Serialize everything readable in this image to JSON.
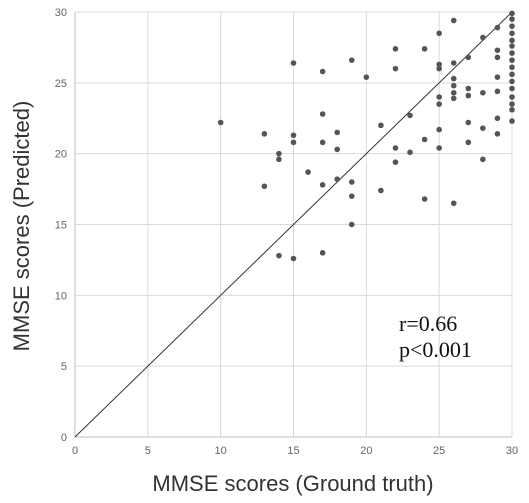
{
  "chart_data": {
    "type": "scatter",
    "xlabel": "MMSE scores (Ground truth)",
    "ylabel": "MMSE scores (Predicted)",
    "xlim": [
      0,
      30
    ],
    "ylim": [
      0,
      30
    ],
    "xticks": [
      0,
      5,
      10,
      15,
      20,
      25,
      30
    ],
    "yticks": [
      0,
      5,
      10,
      15,
      20,
      25,
      30
    ],
    "grid": true,
    "identity_line": true,
    "annotations": [
      "r=0.66",
      "p<0.001"
    ],
    "annotation_placement": "lower-right",
    "marker_color": "#555555",
    "points": [
      [
        10,
        22.2
      ],
      [
        13,
        21.4
      ],
      [
        13,
        17.7
      ],
      [
        14,
        20.0
      ],
      [
        14,
        19.6
      ],
      [
        14,
        12.8
      ],
      [
        15,
        26.4
      ],
      [
        15,
        21.3
      ],
      [
        15,
        20.8
      ],
      [
        15,
        12.6
      ],
      [
        16,
        18.7
      ],
      [
        17,
        25.8
      ],
      [
        17,
        22.8
      ],
      [
        17,
        20.8
      ],
      [
        17,
        17.8
      ],
      [
        17,
        13.0
      ],
      [
        18,
        21.5
      ],
      [
        18,
        20.3
      ],
      [
        18,
        18.2
      ],
      [
        19,
        26.6
      ],
      [
        19,
        18.0
      ],
      [
        19,
        17.0
      ],
      [
        19,
        15.0
      ],
      [
        20,
        25.4
      ],
      [
        21,
        22.0
      ],
      [
        21,
        17.4
      ],
      [
        22,
        27.4
      ],
      [
        22,
        26.0
      ],
      [
        22,
        20.4
      ],
      [
        22,
        19.4
      ],
      [
        23,
        22.7
      ],
      [
        23,
        20.1
      ],
      [
        24,
        27.4
      ],
      [
        24,
        21.0
      ],
      [
        24,
        16.8
      ],
      [
        25,
        28.5
      ],
      [
        25,
        26.3
      ],
      [
        25,
        26.0
      ],
      [
        25,
        24.0
      ],
      [
        25,
        23.5
      ],
      [
        25,
        21.7
      ],
      [
        25,
        20.4
      ],
      [
        26,
        29.4
      ],
      [
        26,
        26.4
      ],
      [
        26,
        25.3
      ],
      [
        26,
        24.8
      ],
      [
        26,
        24.3
      ],
      [
        26,
        23.9
      ],
      [
        26,
        16.5
      ],
      [
        27,
        26.8
      ],
      [
        27,
        24.6
      ],
      [
        27,
        24.1
      ],
      [
        27,
        22.2
      ],
      [
        27,
        20.8
      ],
      [
        28,
        28.2
      ],
      [
        28,
        24.3
      ],
      [
        28,
        21.8
      ],
      [
        28,
        19.6
      ],
      [
        29,
        28.9
      ],
      [
        29,
        27.3
      ],
      [
        29,
        26.8
      ],
      [
        29,
        25.4
      ],
      [
        29,
        24.4
      ],
      [
        29,
        22.5
      ],
      [
        29,
        21.4
      ],
      [
        30,
        29.9
      ],
      [
        30,
        29.5
      ],
      [
        30,
        29.0
      ],
      [
        30,
        28.5
      ],
      [
        30,
        28.0
      ],
      [
        30,
        27.6
      ],
      [
        30,
        27.1
      ],
      [
        30,
        26.6
      ],
      [
        30,
        26.1
      ],
      [
        30,
        25.6
      ],
      [
        30,
        25.1
      ],
      [
        30,
        24.6
      ],
      [
        30,
        24.0
      ],
      [
        30,
        23.5
      ],
      [
        30,
        23.1
      ],
      [
        30,
        22.3
      ]
    ]
  }
}
